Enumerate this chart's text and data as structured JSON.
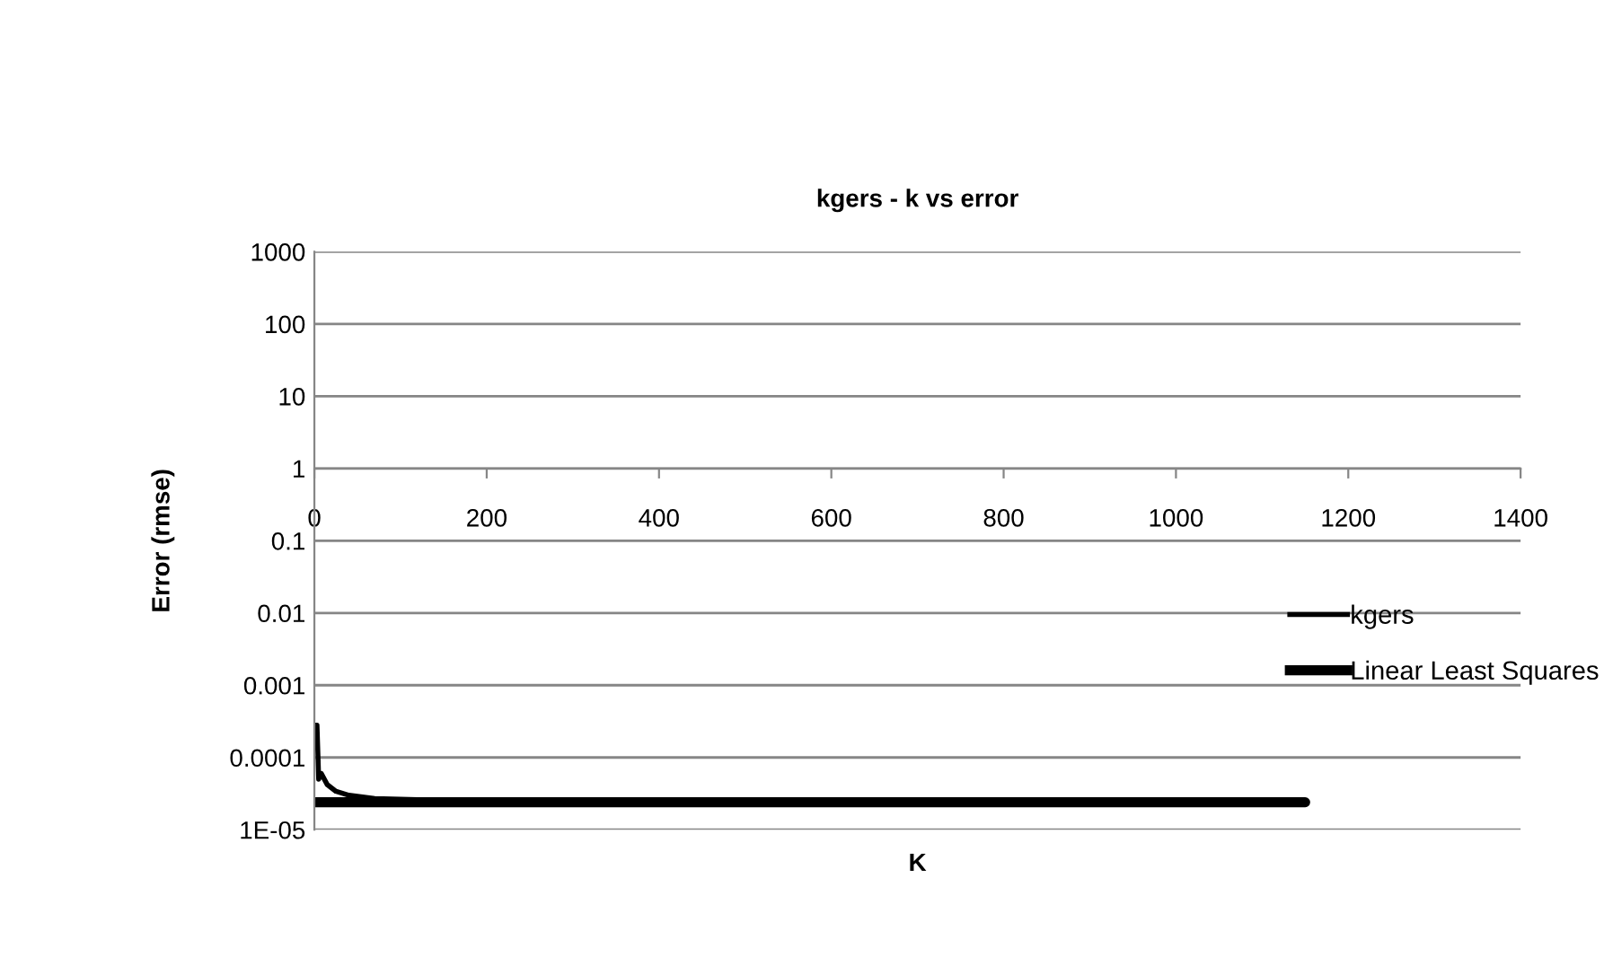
{
  "chart_data": {
    "type": "line",
    "title": "kgers - k vs error",
    "xlabel": "K",
    "ylabel": "Error (rmse)",
    "log": "y",
    "xlim": [
      0,
      1400
    ],
    "xticks": [
      0,
      200,
      400,
      600,
      800,
      1000,
      1200,
      1400
    ],
    "ylim": [
      1e-05,
      1000
    ],
    "yticks": [
      {
        "value": 1e-05,
        "label": "1E-05"
      },
      0.0001,
      0.001,
      0.01,
      0.1,
      1,
      10,
      100,
      1000
    ],
    "grid": "y",
    "legend": "right",
    "marker": "none",
    "line_style": "solid",
    "series": [
      {
        "name": "kgers",
        "color": "#000000",
        "x": [
          1,
          3,
          5,
          8,
          15,
          25,
          40,
          70,
          120,
          300,
          600,
          900,
          1150
        ],
        "values": [
          0.00028,
          0.00028,
          5e-05,
          6e-05,
          4.2e-05,
          3.4e-05,
          3e-05,
          2.7e-05,
          2.6e-05,
          2.5e-05,
          2.5e-05,
          2.5e-05,
          2.5e-05
        ]
      },
      {
        "name": "Linear Least Squares",
        "color": "#000000",
        "x": [
          1,
          1150
        ],
        "values": [
          2.4e-05,
          2.4e-05
        ]
      }
    ]
  }
}
